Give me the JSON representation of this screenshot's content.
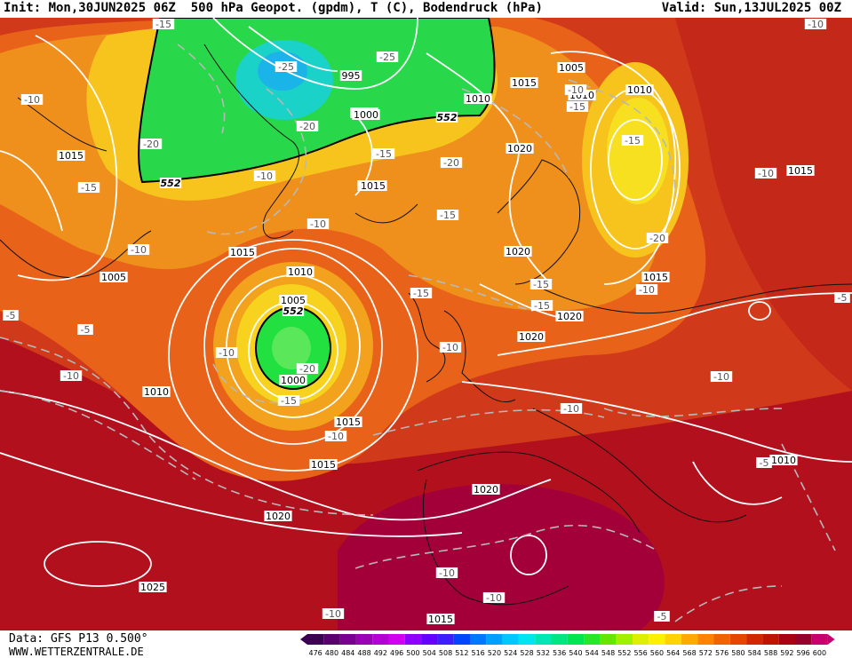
{
  "header": {
    "init": "Init: Mon,30JUN2025 06Z",
    "title": "500 hPa Geopot. (gpdm), T (C), Bodendruck (hPa)",
    "valid": "Valid: Sun,13JUL2025 00Z"
  },
  "footer": {
    "data_source": "Data: GFS P13 0.500°",
    "website": "WWW.WETTERZENTRALE.DE"
  },
  "colors": {
    "ocean_hot": "#a5001e",
    "warm": "#c8281a",
    "orange": "#e8661a",
    "light_orange": "#f29a1c",
    "yellow": "#f7d21e",
    "green": "#2ee24a",
    "cyan": "#1ad2e8",
    "isobar": "#ffffff",
    "isotherm": "#bbbbbb"
  },
  "scale": {
    "values": [
      "476",
      "480",
      "484",
      "488",
      "492",
      "496",
      "500",
      "504",
      "508",
      "512",
      "516",
      "520",
      "524",
      "528",
      "532",
      "536",
      "540",
      "544",
      "548",
      "552",
      "556",
      "560",
      "564",
      "568",
      "572",
      "576",
      "580",
      "584",
      "588",
      "592",
      "596",
      "600"
    ],
    "colors": [
      "#3c0050",
      "#5a006e",
      "#7a0092",
      "#9a00b4",
      "#b400d2",
      "#d200f0",
      "#9000ff",
      "#6400ff",
      "#3c1eff",
      "#0046ff",
      "#0078ff",
      "#00a0ff",
      "#00c8ff",
      "#00e6f0",
      "#00e6b4",
      "#00e682",
      "#00e650",
      "#28e628",
      "#64e600",
      "#a0f000",
      "#dcf000",
      "#fff000",
      "#ffd200",
      "#ffaa00",
      "#ff8200",
      "#f06400",
      "#e64600",
      "#d22800",
      "#be1400",
      "#aa0014",
      "#96002d",
      "#c8006e"
    ]
  },
  "geopotential_labels": [
    "552",
    "552",
    "552"
  ],
  "isobar_labels": [
    "1000",
    "995",
    "1000",
    "1005",
    "1010",
    "1015",
    "1015",
    "1015",
    "1015",
    "1005",
    "1010",
    "1015",
    "1005",
    "1000",
    "1010",
    "1010",
    "1015",
    "1020",
    "1020",
    "1020",
    "1020",
    "1010",
    "1015",
    "1020",
    "1015",
    "1020",
    "1025",
    "1015",
    "1010",
    "1010",
    "1015",
    "1005",
    "1010"
  ],
  "temperature_labels": [
    "-15",
    "-10",
    "-20",
    "-25",
    "-25",
    "-20",
    "-15",
    "-20",
    "-15",
    "-10",
    "-10",
    "-5",
    "-5",
    "-15",
    "-10",
    "-15",
    "-10",
    "-20",
    "-15",
    "-15",
    "-10",
    "-15",
    "-20",
    "-10",
    "-10",
    "-15",
    "-15",
    "-10",
    "-10",
    "-10",
    "-10",
    "-10",
    "-5",
    "-10",
    "-5",
    "-5",
    "-10",
    "-10",
    "-10"
  ]
}
